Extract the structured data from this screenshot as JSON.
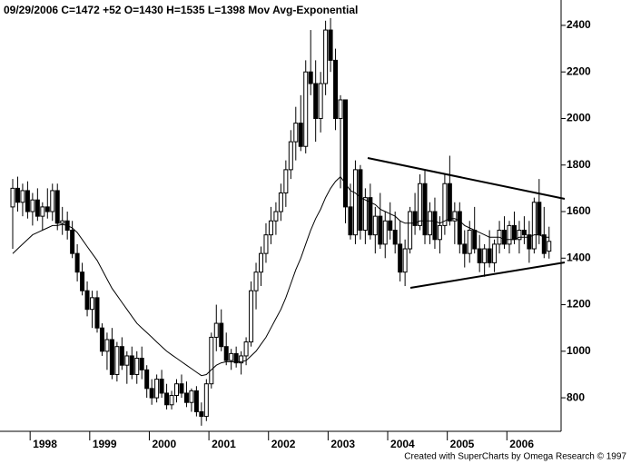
{
  "chart_data": {
    "type": "candlestick",
    "title": "09/29/2006  C=1472  +52  O=1430  H=1535  L=1398  Mov Avg-Exponential",
    "credit": "Created with SuperCharts by Omega Research © 1997",
    "categories": [
      null,
      null,
      null,
      null,
      "1998",
      null,
      null,
      null,
      null,
      null,
      null,
      null,
      null,
      null,
      null,
      null,
      "1999",
      null,
      null,
      null,
      null,
      null,
      null,
      null,
      null,
      null,
      null,
      null,
      "2000",
      null,
      null,
      null,
      null,
      null,
      null,
      null,
      null,
      null,
      null,
      null,
      "2001",
      null,
      null,
      null,
      null,
      null,
      null,
      null,
      null,
      null,
      null,
      null,
      "2002",
      null,
      null,
      null,
      null,
      null,
      null,
      null,
      null,
      null,
      null,
      null,
      "2003",
      null,
      null,
      null,
      null,
      null,
      null,
      null,
      null,
      null,
      null,
      null,
      "2004",
      null,
      null,
      null,
      null,
      null,
      null,
      null,
      null,
      null,
      null,
      null,
      "2005",
      null,
      null,
      null,
      null,
      null,
      null,
      null,
      null,
      null,
      null,
      null,
      "2006",
      null,
      null,
      null,
      null,
      null,
      null,
      null,
      null
    ],
    "open": [
      1620,
      1700,
      1640,
      1690,
      1600,
      1650,
      1580,
      1620,
      1600,
      1690,
      1550,
      1560,
      1520,
      1420,
      1340,
      1260,
      1180,
      1230,
      1100,
      1000,
      1050,
      900,
      1020,
      940,
      980,
      900,
      970,
      920,
      840,
      800,
      880,
      820,
      770,
      810,
      860,
      820,
      780,
      830,
      740,
      720,
      860,
      1060,
      1120,
      1020,
      960,
      990,
      950,
      980,
      1040,
      1260,
      1340,
      1420,
      1500,
      1560,
      1600,
      1680,
      1780,
      1900,
      1980,
      1880,
      2200,
      2150,
      2000,
      2150,
      2380,
      2250,
      2000,
      2080,
      1620,
      1500,
      1780,
      1520,
      1660,
      1500,
      1580,
      1460,
      1560,
      1520,
      1460,
      1340,
      1440,
      1600,
      1540,
      1720,
      1500,
      1600,
      1480,
      1540,
      1720,
      1560,
      1600,
      1460,
      1420,
      1520,
      1440,
      1380,
      1440,
      1380,
      1460,
      1520,
      1460,
      1540,
      1480,
      1520,
      1500,
      1440,
      1640,
      1500,
      1430
    ],
    "high": [
      1740,
      1750,
      1720,
      1730,
      1680,
      1700,
      1640,
      1700,
      1720,
      1720,
      1620,
      1600,
      1560,
      1460,
      1380,
      1300,
      1260,
      1260,
      1120,
      1080,
      1100,
      1040,
      1060,
      1000,
      1020,
      1000,
      1020,
      940,
      880,
      900,
      920,
      860,
      830,
      880,
      900,
      870,
      840,
      850,
      780,
      880,
      1080,
      1200,
      1180,
      1080,
      1010,
      1020,
      1000,
      1060,
      1300,
      1380,
      1450,
      1550,
      1620,
      1640,
      1720,
      1820,
      1950,
      2050,
      2100,
      2250,
      2380,
      2250,
      2200,
      2420,
      2460,
      2300,
      2100,
      2080,
      1720,
      1820,
      1800,
      1700,
      1720,
      1620,
      1680,
      1600,
      1640,
      1600,
      1560,
      1480,
      1620,
      1680,
      1760,
      1780,
      1640,
      1660,
      1580,
      1760,
      1840,
      1640,
      1640,
      1520,
      1560,
      1620,
      1500,
      1460,
      1520,
      1480,
      1560,
      1580,
      1560,
      1600,
      1560,
      1580,
      1560,
      1660,
      1740,
      1620,
      1535
    ],
    "low": [
      1440,
      1600,
      1580,
      1570,
      1540,
      1560,
      1520,
      1570,
      1560,
      1520,
      1500,
      1480,
      1400,
      1300,
      1240,
      1150,
      1100,
      1080,
      980,
      920,
      880,
      870,
      920,
      860,
      880,
      860,
      880,
      800,
      770,
      780,
      800,
      750,
      750,
      780,
      800,
      760,
      740,
      720,
      680,
      700,
      840,
      1000,
      1000,
      940,
      920,
      930,
      900,
      940,
      1020,
      1180,
      1280,
      1380,
      1460,
      1500,
      1560,
      1620,
      1740,
      1820,
      1860,
      1850,
      2100,
      1900,
      1940,
      2100,
      2200,
      1950,
      1700,
      1550,
      1480,
      1460,
      1480,
      1460,
      1480,
      1420,
      1440,
      1400,
      1480,
      1420,
      1300,
      1280,
      1420,
      1500,
      1520,
      1460,
      1460,
      1440,
      1420,
      1500,
      1540,
      1460,
      1420,
      1360,
      1380,
      1420,
      1340,
      1320,
      1360,
      1340,
      1420,
      1440,
      1420,
      1460,
      1420,
      1460,
      1380,
      1420,
      1460,
      1400,
      1398
    ],
    "close": [
      1700,
      1640,
      1690,
      1600,
      1650,
      1580,
      1620,
      1600,
      1690,
      1550,
      1560,
      1520,
      1420,
      1340,
      1260,
      1180,
      1230,
      1100,
      1000,
      1050,
      900,
      1020,
      940,
      980,
      900,
      970,
      920,
      840,
      800,
      880,
      820,
      770,
      810,
      860,
      820,
      780,
      830,
      740,
      720,
      860,
      1060,
      1120,
      1020,
      960,
      990,
      950,
      980,
      1040,
      1260,
      1340,
      1420,
      1500,
      1560,
      1600,
      1680,
      1780,
      1900,
      1980,
      1880,
      2200,
      2150,
      2000,
      2150,
      2380,
      2250,
      2000,
      2080,
      1620,
      1500,
      1780,
      1520,
      1660,
      1500,
      1580,
      1460,
      1560,
      1520,
      1460,
      1340,
      1440,
      1600,
      1540,
      1720,
      1500,
      1600,
      1480,
      1540,
      1720,
      1560,
      1600,
      1460,
      1420,
      1520,
      1440,
      1380,
      1440,
      1380,
      1460,
      1520,
      1460,
      1540,
      1480,
      1520,
      1500,
      1440,
      1640,
      1500,
      1420,
      1472
    ],
    "moving_average": {
      "color": "#000000",
      "values": [
        1420,
        1440,
        1460,
        1480,
        1500,
        1510,
        1520,
        1530,
        1540,
        1540,
        1545,
        1540,
        1530,
        1510,
        1480,
        1450,
        1420,
        1390,
        1350,
        1310,
        1270,
        1240,
        1210,
        1180,
        1150,
        1120,
        1100,
        1080,
        1060,
        1040,
        1020,
        1000,
        985,
        970,
        955,
        940,
        925,
        910,
        895,
        900,
        920,
        940,
        950,
        955,
        955,
        955,
        955,
        960,
        980,
        1000,
        1030,
        1060,
        1100,
        1140,
        1180,
        1230,
        1290,
        1350,
        1400,
        1460,
        1520,
        1570,
        1610,
        1660,
        1700,
        1730,
        1750,
        1720,
        1690,
        1680,
        1660,
        1650,
        1640,
        1630,
        1610,
        1600,
        1590,
        1580,
        1560,
        1550,
        1550,
        1550,
        1560,
        1560,
        1560,
        1560,
        1550,
        1560,
        1570,
        1570,
        1560,
        1540,
        1530,
        1520,
        1510,
        1500,
        1490,
        1490,
        1490,
        1480,
        1480,
        1480,
        1490,
        1490,
        1490,
        1500,
        1500,
        1490,
        1490
      ]
    },
    "up_color": "#ffffff",
    "down_color": "#000000",
    "ylim": [
      656,
      2509
    ],
    "yticks": [
      800,
      1000,
      1200,
      1400,
      1600,
      1800,
      2000,
      2200,
      2400
    ]
  }
}
